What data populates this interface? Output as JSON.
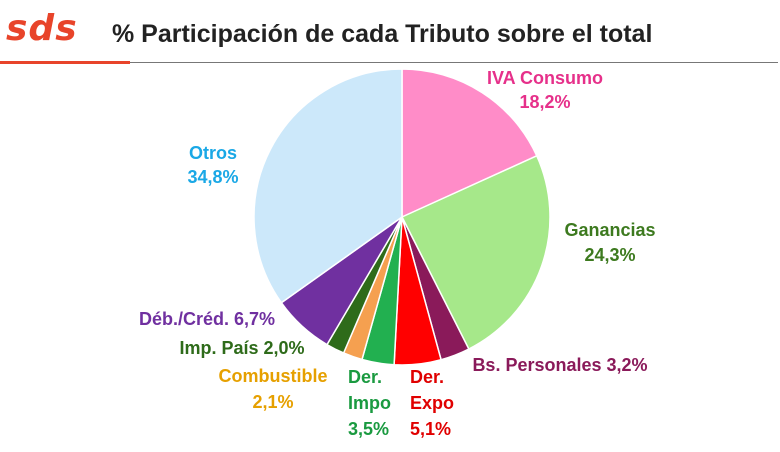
{
  "header": {
    "logo_text": "sds",
    "title": "% Participación de cada Tributo sobre el total"
  },
  "colors": {
    "brand": "#e8442a",
    "rule": "#777777",
    "title": "#222222",
    "slice_edge": "#ffffff"
  },
  "chart_data": {
    "type": "pie",
    "title": "% Participación de cada Tributo sobre el total",
    "slices": [
      {
        "name": "IVA Consumo",
        "value": 18.2,
        "value_label": "18,2%",
        "color": "#ff8cc8",
        "label_color": "#e6308a"
      },
      {
        "name": "Ganancias",
        "value": 24.3,
        "value_label": "24,3%",
        "color": "#a6e88a",
        "label_color": "#3d7a1f"
      },
      {
        "name": "Bs. Personales",
        "value": 3.2,
        "value_label": "3,2%",
        "color": "#8a1a5a",
        "label_color": "#8a1a5a"
      },
      {
        "name": "Der. Expo",
        "value": 5.1,
        "value_label": "5,1%",
        "color": "#ff0000",
        "label_color": "#e00000"
      },
      {
        "name": "Der. Impo",
        "value": 3.5,
        "value_label": "3,5%",
        "color": "#22b050",
        "label_color": "#1a9a40"
      },
      {
        "name": "Combustible",
        "value": 2.1,
        "value_label": "2,1%",
        "color": "#f5a050",
        "label_color": "#e6a000"
      },
      {
        "name": "Imp. País",
        "value": 2.0,
        "value_label": "2,0%",
        "color": "#2e6b1a",
        "label_color": "#2e6b1a"
      },
      {
        "name": "Déb./Créd.",
        "value": 6.7,
        "value_label": "6,7%",
        "color": "#7030a0",
        "label_color": "#7030a0"
      },
      {
        "name": "Otros",
        "value": 34.8,
        "value_label": "34,8%",
        "color": "#cce8fa",
        "label_color": "#1aa8e6"
      }
    ]
  }
}
